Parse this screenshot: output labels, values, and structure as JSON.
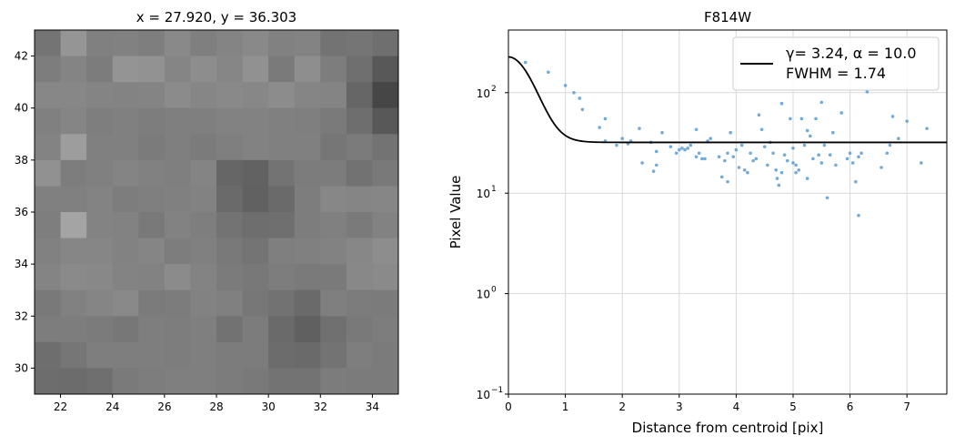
{
  "charts": [
    {
      "type": "heatmap",
      "title": "x = 27.920, y = 36.303",
      "xlim": [
        21,
        35
      ],
      "ylim": [
        29,
        43
      ],
      "xticks": [
        22,
        24,
        26,
        28,
        30,
        32,
        34
      ],
      "yticks": [
        30,
        32,
        34,
        36,
        38,
        40,
        42
      ],
      "colormap": "gray",
      "grid": false,
      "grid_gray_levels_rows_top_to_bottom": [
        [
          116,
          149,
          128,
          129,
          126,
          137,
          127,
          132,
          137,
          129,
          131,
          115,
          117,
          111
        ],
        [
          125,
          132,
          124,
          148,
          146,
          133,
          141,
          134,
          145,
          122,
          142,
          125,
          111,
          88
        ],
        [
          135,
          135,
          132,
          131,
          132,
          139,
          134,
          137,
          135,
          140,
          133,
          132,
          102,
          70
        ],
        [
          128,
          133,
          126,
          128,
          125,
          127,
          127,
          130,
          130,
          128,
          127,
          122,
          110,
          88
        ],
        [
          131,
          157,
          128,
          128,
          123,
          127,
          123,
          127,
          130,
          128,
          128,
          118,
          123,
          115
        ],
        [
          145,
          125,
          128,
          132,
          129,
          127,
          132,
          102,
          98,
          115,
          124,
          124,
          114,
          121
        ],
        [
          128,
          128,
          131,
          125,
          127,
          128,
          130,
          106,
          97,
          106,
          125,
          135,
          133,
          134
        ],
        [
          126,
          164,
          131,
          130,
          121,
          130,
          126,
          115,
          110,
          111,
          125,
          128,
          122,
          130
        ],
        [
          129,
          134,
          134,
          130,
          133,
          125,
          128,
          121,
          116,
          127,
          128,
          130,
          135,
          141
        ],
        [
          132,
          138,
          136,
          131,
          130,
          139,
          131,
          123,
          120,
          125,
          122,
          122,
          136,
          138
        ],
        [
          121,
          129,
          133,
          137,
          123,
          124,
          130,
          128,
          119,
          114,
          106,
          127,
          124,
          123
        ],
        [
          125,
          125,
          123,
          119,
          126,
          125,
          127,
          114,
          124,
          106,
          96,
          112,
          121,
          125
        ],
        [
          110,
          118,
          126,
          126,
          126,
          125,
          127,
          124,
          124,
          108,
          106,
          115,
          126,
          123
        ],
        [
          109,
          108,
          111,
          122,
          125,
          127,
          127,
          124,
          121,
          115,
          115,
          124,
          123,
          123
        ]
      ]
    },
    {
      "type": "scatter",
      "title": "F814W",
      "xlabel": "Distance from centroid [pix]",
      "ylabel": "Pixel Value",
      "xlim": [
        0,
        7.7
      ],
      "ylim": [
        0.1,
        420
      ],
      "yscale": "log",
      "xticks": [
        0,
        1,
        2,
        3,
        4,
        5,
        6,
        7
      ],
      "yticks": [
        0.1,
        1,
        10,
        100
      ],
      "ytick_labels": [
        "10",
        "10",
        "10",
        "10"
      ],
      "ytick_exponents": [
        "−1",
        "0",
        "1",
        "2"
      ],
      "grid": true,
      "legend_position": "top-right",
      "legend_line1_prefix": "γ= 3.24, α = 10.0",
      "legend_line2": "FWHM = 1.74",
      "series": [
        {
          "name": "",
          "kind": "scatter",
          "color": "#5b9bd0",
          "points": [
            [
              0.3,
              200
            ],
            [
              0.7,
              160
            ],
            [
              1.0,
              118
            ],
            [
              1.15,
              100
            ],
            [
              1.25,
              88
            ],
            [
              1.3,
              68
            ],
            [
              1.6,
              45
            ],
            [
              1.7,
              55
            ],
            [
              1.7,
              33
            ],
            [
              1.9,
              30
            ],
            [
              2.0,
              35
            ],
            [
              2.1,
              31
            ],
            [
              2.15,
              33
            ],
            [
              2.3,
              44
            ],
            [
              2.35,
              20
            ],
            [
              2.5,
              32
            ],
            [
              2.55,
              16.5
            ],
            [
              2.6,
              19
            ],
            [
              2.6,
              26
            ],
            [
              2.7,
              40
            ],
            [
              2.85,
              29
            ],
            [
              2.95,
              25
            ],
            [
              3.0,
              27
            ],
            [
              3.05,
              28
            ],
            [
              3.1,
              27
            ],
            [
              3.15,
              28
            ],
            [
              3.2,
              30
            ],
            [
              3.3,
              43
            ],
            [
              3.3,
              23
            ],
            [
              3.35,
              25
            ],
            [
              3.4,
              22
            ],
            [
              3.45,
              22
            ],
            [
              3.5,
              33
            ],
            [
              3.55,
              35
            ],
            [
              3.7,
              23
            ],
            [
              3.75,
              14.5
            ],
            [
              3.8,
              21
            ],
            [
              3.85,
              13
            ],
            [
              3.85,
              25
            ],
            [
              3.9,
              40
            ],
            [
              3.95,
              23
            ],
            [
              4.0,
              27
            ],
            [
              4.05,
              18
            ],
            [
              4.1,
              30
            ],
            [
              4.15,
              17
            ],
            [
              4.2,
              16
            ],
            [
              4.25,
              25
            ],
            [
              4.3,
              21
            ],
            [
              4.35,
              22
            ],
            [
              4.4,
              60
            ],
            [
              4.45,
              43
            ],
            [
              4.5,
              29
            ],
            [
              4.55,
              19
            ],
            [
              4.6,
              32
            ],
            [
              4.65,
              25
            ],
            [
              4.7,
              17
            ],
            [
              4.72,
              14
            ],
            [
              4.75,
              12
            ],
            [
              4.8,
              16
            ],
            [
              4.8,
              78
            ],
            [
              4.85,
              24
            ],
            [
              4.9,
              21
            ],
            [
              4.95,
              55
            ],
            [
              5.0,
              20
            ],
            [
              5.0,
              28
            ],
            [
              5.05,
              19
            ],
            [
              5.05,
              16
            ],
            [
              5.1,
              17
            ],
            [
              5.15,
              55
            ],
            [
              5.2,
              30
            ],
            [
              5.25,
              14
            ],
            [
              5.25,
              42
            ],
            [
              5.3,
              37
            ],
            [
              5.35,
              22
            ],
            [
              5.4,
              55
            ],
            [
              5.45,
              24
            ],
            [
              5.5,
              80
            ],
            [
              5.5,
              20
            ],
            [
              5.55,
              30
            ],
            [
              5.6,
              9
            ],
            [
              5.65,
              24
            ],
            [
              5.7,
              40
            ],
            [
              5.75,
              19
            ],
            [
              5.85,
              63
            ],
            [
              5.95,
              22
            ],
            [
              6.0,
              25
            ],
            [
              6.05,
              20
            ],
            [
              6.1,
              13
            ],
            [
              6.15,
              6
            ],
            [
              6.15,
              23
            ],
            [
              6.2,
              25
            ],
            [
              6.3,
              102
            ],
            [
              6.55,
              18
            ],
            [
              6.65,
              25
            ],
            [
              6.7,
              30
            ],
            [
              6.75,
              58
            ],
            [
              6.85,
              35
            ],
            [
              7.0,
              52
            ],
            [
              7.25,
              20
            ],
            [
              7.35,
              44
            ]
          ]
        },
        {
          "name": "γ= 3.24, α = 10.0",
          "kind": "line",
          "color": "#000000",
          "profile": "moffat",
          "amplitude": 195,
          "background": 32,
          "gamma": 3.24,
          "alpha": 10.0,
          "fwhm": 1.74
        }
      ]
    }
  ]
}
